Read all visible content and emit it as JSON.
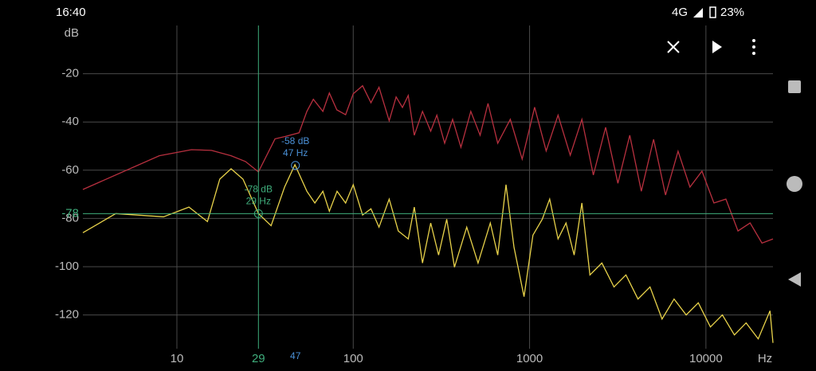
{
  "status_bar": {
    "time": "16:40",
    "network": "4G",
    "battery": "23%"
  },
  "chart_data": {
    "type": "line",
    "y_label": "dB",
    "x_label": "Hz",
    "log_x": true,
    "grid": true,
    "xlim": [
      2.93,
      24000
    ],
    "ylim": [
      -134,
      0
    ],
    "xticks": [
      10,
      100,
      1000,
      10000
    ],
    "yticks": [
      -20,
      -40,
      -60,
      -80,
      -100,
      -120
    ],
    "series": [
      {
        "color": "#b8303f",
        "x": [
          2.93,
          7.95,
          12.1,
          15.7,
          20.3,
          24.5,
          29,
          36,
          41.2,
          49.3,
          54.6,
          59.4,
          67.3,
          73.2,
          80.7,
          90.5,
          100,
          113,
          126,
          140,
          160,
          175,
          190,
          205,
          222,
          247,
          275,
          298,
          330,
          366,
          408,
          464,
          524,
          581,
          660,
          778,
          908,
          1068,
          1242,
          1450,
          1700,
          1980,
          2300,
          2700,
          3170,
          3700,
          4300,
          5050,
          5900,
          6950,
          8120,
          9500,
          11100,
          12970,
          15200,
          17800,
          20800,
          24000
        ],
        "values": [
          -68,
          -54,
          -51.5,
          -51.8,
          -54,
          -56.4,
          -60.7,
          -47,
          -46,
          -44.5,
          -35.6,
          -30.6,
          -35.6,
          -28,
          -35,
          -37,
          -28.3,
          -25,
          -32,
          -25.6,
          -39.5,
          -29.6,
          -34,
          -29,
          -45.5,
          -35.6,
          -43.8,
          -37.2,
          -48.8,
          -38.9,
          -50.5,
          -35.6,
          -45.5,
          -32.3,
          -48.8,
          -38.9,
          -55.4,
          -33.9,
          -52,
          -37.2,
          -53.8,
          -38.9,
          -62,
          -42.2,
          -65.4,
          -45.5,
          -68.7,
          -47.2,
          -70.3,
          -52.1,
          -67,
          -60.4,
          -73.6,
          -72,
          -85.2,
          -81.9,
          -90.2,
          -88.5
        ]
      },
      {
        "color": "#e8d24a",
        "x": [
          2.93,
          4.5,
          8.4,
          11.7,
          14.9,
          17.5,
          20.3,
          23.7,
          29,
          34.2,
          40.8,
          46.7,
          54.6,
          60.6,
          67.3,
          73.2,
          81,
          90.5,
          100,
          113,
          126,
          140,
          160,
          180,
          205,
          222,
          247,
          275,
          305,
          339,
          375,
          440,
          510,
          599,
          660,
          735,
          816,
          930,
          1045,
          1180,
          1300,
          1450,
          1610,
          1790,
          1980,
          2200,
          2570,
          3010,
          3520,
          4120,
          4820,
          5640,
          6600,
          7730,
          9050,
          10600,
          12400,
          14500,
          16900,
          19800,
          23100,
          24000
        ],
        "values": [
          -85.9,
          -78,
          -79.3,
          -75.3,
          -81.3,
          -63.7,
          -59.4,
          -63.7,
          -78,
          -83,
          -67,
          -57.7,
          -68.7,
          -73.6,
          -68.7,
          -77,
          -68.7,
          -73.6,
          -66,
          -78.6,
          -76,
          -83.6,
          -72,
          -85.2,
          -88.5,
          -75.3,
          -98.5,
          -81.9,
          -95.2,
          -80.3,
          -100.2,
          -83.6,
          -98.5,
          -81.9,
          -95.2,
          -66,
          -91.9,
          -112.4,
          -86.9,
          -80.3,
          -72,
          -88.5,
          -81.9,
          -95.2,
          -73.6,
          -103.4,
          -98.5,
          -108.4,
          -103.4,
          -113.4,
          -108.4,
          -121.7,
          -113.4,
          -120,
          -115,
          -125,
          -120,
          -128.3,
          -123.3,
          -129.9,
          -118.3,
          -131.6
        ]
      }
    ],
    "markers": [
      {
        "x": 29,
        "y": -78,
        "label_y": "-78 dB",
        "label_x": "29 Hz",
        "axis_x_label": "29",
        "axis_y_label": "-78",
        "color": "#3fae7c"
      },
      {
        "x": 47,
        "y": -58,
        "label_y": "-58 dB",
        "label_x": "47 Hz",
        "axis_x_label": "47",
        "color": "#4a90d6"
      }
    ]
  }
}
